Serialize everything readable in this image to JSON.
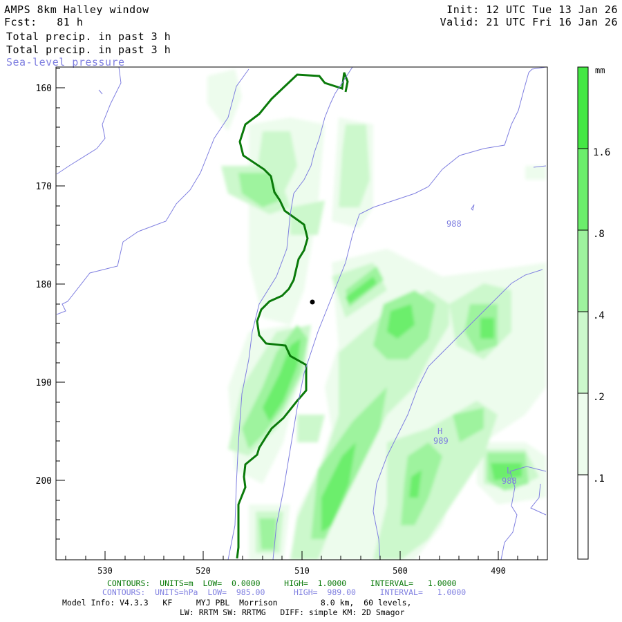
{
  "header": {
    "title": "AMPS 8km Halley window",
    "fcst": "Fcst:   81 h",
    "line1": "Total precip. in past 3 h",
    "line2": "Total precip. in past 3 h",
    "line3": "Sea-level pressure",
    "init": "Init: 12 UTC Tue 13 Jan 26",
    "valid": "Valid: 21 UTC Fri 16 Jan 26"
  },
  "axes": {
    "y_ticks": [
      "160",
      "170",
      "180",
      "190",
      "200"
    ],
    "x_ticks": [
      "530",
      "520",
      "510",
      "500",
      "490"
    ]
  },
  "colorbar": {
    "unit": "mm",
    "labels": [
      "1.6",
      ".8",
      ".4",
      ".2",
      ".1"
    ],
    "colors": [
      "#45e845",
      "#6cee6c",
      "#9ef39e",
      "#ccf8cc",
      "#edfced",
      "#ffffff"
    ]
  },
  "map_labels": {
    "iso988_a": "988",
    "high_mark": "H",
    "high_val": "989",
    "low_mark": "L",
    "low_val": "988"
  },
  "footer": {
    "contours_green": "CONTOURS:  UNITS=m  LOW=  0.0000     HIGH=  1.0000     INTERVAL=   1.0000",
    "contours_blue": "CONTOURS:  UNITS=hPa  LOW=  985.00      HIGH=  989.00     INTERVAL=   1.0000",
    "model_info": "Model Info: V4.3.3   KF     MYJ PBL  Morrison         8.0 km,  60 levels,",
    "physics": "LW: RRTM SW: RRTMG   DIFF: simple KM: 2D Smagor"
  },
  "colors": {
    "coast": "#0a7a0a",
    "isobar": "#7f7fe0",
    "axis": "#000000"
  }
}
